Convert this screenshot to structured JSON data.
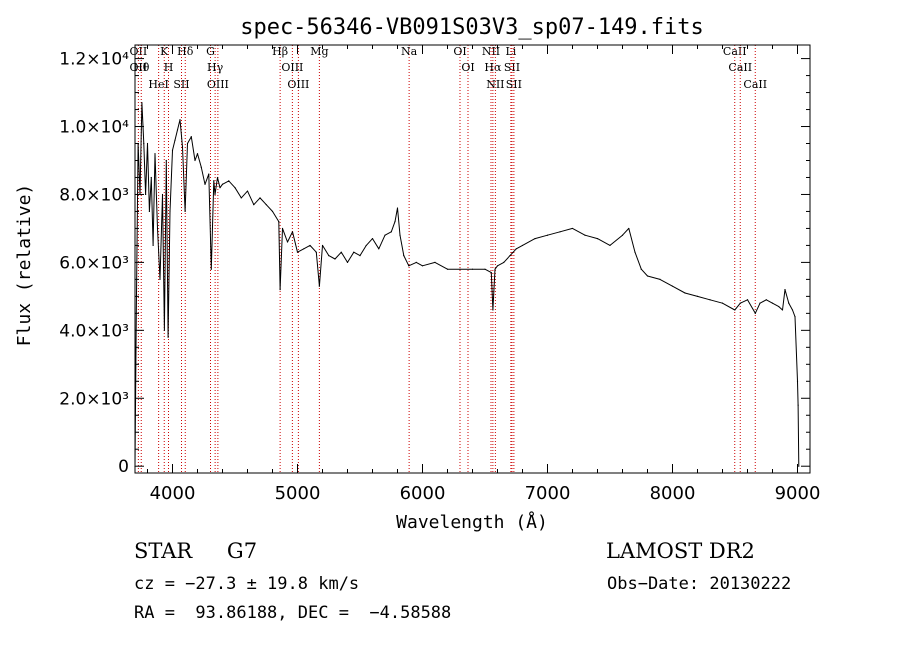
{
  "chart_data": {
    "type": "line",
    "title": "spec-56346-VB091S03V3_sp07-149.fits",
    "xlabel": "Wavelength (Å)",
    "ylabel": "Flux (relative)",
    "xlim": [
      3700,
      9100
    ],
    "ylim": [
      -200,
      12400
    ],
    "xticks": [
      {
        "value": 4000,
        "label": "4000"
      },
      {
        "value": 5000,
        "label": "5000"
      },
      {
        "value": 6000,
        "label": "6000"
      },
      {
        "value": 7000,
        "label": "7000"
      },
      {
        "value": 8000,
        "label": "8000"
      },
      {
        "value": 9000,
        "label": "9000"
      }
    ],
    "yticks": [
      {
        "value": 0,
        "label": "0"
      },
      {
        "value": 2000,
        "label": "2.0×10³"
      },
      {
        "value": 4000,
        "label": "4.0×10³"
      },
      {
        "value": 6000,
        "label": "6.0×10³"
      },
      {
        "value": 8000,
        "label": "8.0×10³"
      },
      {
        "value": 10000,
        "label": "1.0×10⁴"
      },
      {
        "value": 12000,
        "label": "1.2×10⁴"
      }
    ],
    "series": [
      {
        "name": "flux",
        "x": [
          3700,
          3710,
          3725,
          3740,
          3755,
          3770,
          3785,
          3800,
          3815,
          3830,
          3845,
          3860,
          3880,
          3900,
          3920,
          3935,
          3950,
          3965,
          3980,
          4000,
          4020,
          4040,
          4060,
          4080,
          4101,
          4120,
          4150,
          4180,
          4200,
          4230,
          4260,
          4290,
          4310,
          4330,
          4340,
          4360,
          4380,
          4400,
          4450,
          4500,
          4550,
          4600,
          4650,
          4700,
          4750,
          4800,
          4850,
          4861,
          4880,
          4920,
          4960,
          5000,
          5050,
          5100,
          5150,
          5175,
          5200,
          5250,
          5300,
          5350,
          5400,
          5450,
          5500,
          5550,
          5600,
          5650,
          5700,
          5750,
          5780,
          5800,
          5820,
          5850,
          5890,
          5950,
          6000,
          6100,
          6200,
          6300,
          6400,
          6500,
          6550,
          6563,
          6580,
          6600,
          6650,
          6700,
          6750,
          6800,
          6900,
          7000,
          7100,
          7200,
          7300,
          7400,
          7500,
          7600,
          7650,
          7700,
          7750,
          7800,
          7900,
          8000,
          8100,
          8200,
          8300,
          8400,
          8498,
          8542,
          8600,
          8662,
          8700,
          8750,
          8800,
          8850,
          8880,
          8900,
          8930,
          8960,
          8980,
          9000,
          9005,
          9010
        ],
        "y": [
          0,
          4500,
          9500,
          8000,
          10700,
          9500,
          8000,
          9500,
          7500,
          8500,
          6500,
          9200,
          7000,
          5500,
          8000,
          4000,
          9000,
          3800,
          7500,
          9300,
          9600,
          9900,
          10200,
          9400,
          7500,
          9500,
          9700,
          9000,
          9200,
          8800,
          8300,
          8600,
          5800,
          8400,
          8000,
          8500,
          8200,
          8300,
          8400,
          8200,
          7900,
          8100,
          7700,
          7900,
          7700,
          7500,
          7200,
          5200,
          7000,
          6600,
          6900,
          6300,
          6400,
          6500,
          6300,
          5300,
          6500,
          6200,
          6100,
          6300,
          6000,
          6300,
          6200,
          6500,
          6700,
          6400,
          6800,
          6900,
          7200,
          7600,
          6800,
          6200,
          5900,
          6000,
          5900,
          6000,
          5800,
          5800,
          5800,
          5800,
          5700,
          4600,
          5800,
          5900,
          6000,
          6200,
          6400,
          6500,
          6700,
          6800,
          6900,
          7000,
          6800,
          6700,
          6500,
          6800,
          7000,
          6300,
          5800,
          5600,
          5500,
          5300,
          5100,
          5000,
          4900,
          4800,
          4600,
          4800,
          4900,
          4500,
          4800,
          4900,
          4800,
          4700,
          4600,
          5200,
          4800,
          4600,
          4400,
          2500,
          1800,
          0
        ]
      }
    ],
    "lines": [
      {
        "wavelength": 3727,
        "labels": [
          "OII",
          "OII"
        ]
      },
      {
        "wavelength": 3750,
        "labels": [
          "Hθ"
        ]
      },
      {
        "wavelength": 3889,
        "labels": [
          "HeI"
        ]
      },
      {
        "wavelength": 3934,
        "labels": [
          "K"
        ]
      },
      {
        "wavelength": 3968,
        "labels": [
          "H"
        ]
      },
      {
        "wavelength": 4072,
        "labels": [
          "SII"
        ]
      },
      {
        "wavelength": 4102,
        "labels": [
          "Hδ"
        ]
      },
      {
        "wavelength": 4304,
        "labels": [
          "G"
        ]
      },
      {
        "wavelength": 4341,
        "labels": [
          "Hγ"
        ]
      },
      {
        "wavelength": 4363,
        "labels": [
          "OIII"
        ]
      },
      {
        "wavelength": 4861,
        "labels": [
          "Hβ"
        ]
      },
      {
        "wavelength": 4959,
        "labels": [
          "OIII"
        ]
      },
      {
        "wavelength": 5007,
        "labels": [
          "OIII"
        ]
      },
      {
        "wavelength": 5175,
        "labels": [
          "Mg"
        ]
      },
      {
        "wavelength": 5893,
        "labels": [
          "Na"
        ]
      },
      {
        "wavelength": 6300,
        "labels": [
          "OI"
        ]
      },
      {
        "wavelength": 6364,
        "labels": [
          "OI"
        ]
      },
      {
        "wavelength": 6548,
        "labels": [
          "NII"
        ]
      },
      {
        "wavelength": 6563,
        "labels": [
          "Hα"
        ]
      },
      {
        "wavelength": 6583,
        "labels": [
          "NII"
        ]
      },
      {
        "wavelength": 6707,
        "labels": [
          "Li"
        ]
      },
      {
        "wavelength": 6716,
        "labels": [
          "SII"
        ]
      },
      {
        "wavelength": 6731,
        "labels": [
          "SII"
        ]
      },
      {
        "wavelength": 8498,
        "labels": [
          "CaII"
        ]
      },
      {
        "wavelength": 8542,
        "labels": [
          "CaII"
        ]
      },
      {
        "wavelength": 8662,
        "labels": [
          "CaII"
        ]
      }
    ]
  },
  "info": {
    "class_label": "STAR",
    "subclass": "G7",
    "survey": "LAMOST DR2",
    "cz": "cz = −27.3 ± 19.8 km/s",
    "obs_date": "Obs−Date: 20130222",
    "coords": "RA =  93.86188, DEC =  −4.58588"
  },
  "colors": {
    "line": "#000000",
    "marker": "#cc0000"
  }
}
